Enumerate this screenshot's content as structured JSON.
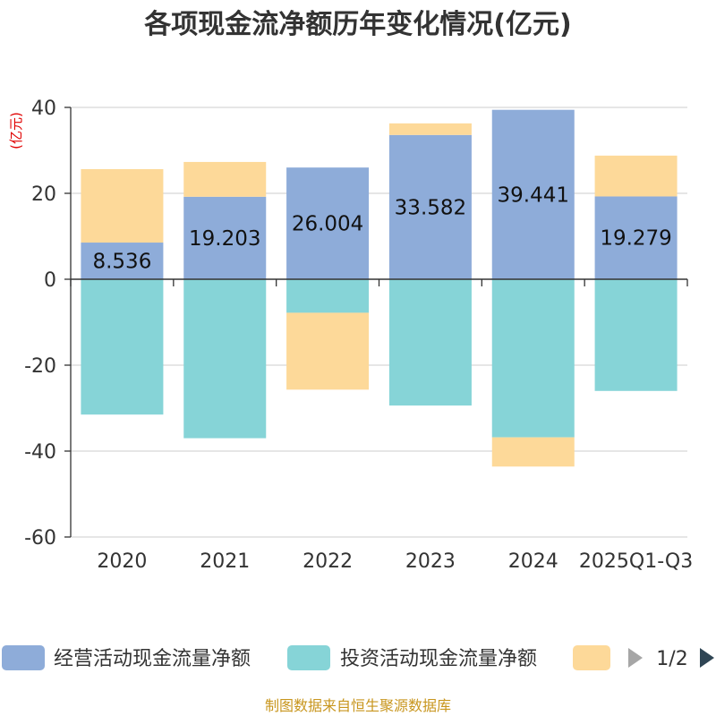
{
  "chart_data": {
    "type": "bar",
    "stacked": true,
    "title": "各项现金流净额历年变化情况(亿元)",
    "unit_label": "(亿元)",
    "categories": [
      "2020",
      "2021",
      "2022",
      "2023",
      "2024",
      "2025Q1-Q3"
    ],
    "series": [
      {
        "name": "经营活动现金流量净额",
        "color": "#8eacd9",
        "values": [
          8.536,
          19.203,
          26.004,
          33.582,
          39.441,
          19.279
        ],
        "labels": [
          "8.536",
          "19.203",
          "26.004",
          "33.582",
          "39.441",
          "19.279"
        ]
      },
      {
        "name": "投资活动现金流量净额",
        "color": "#86d4d7",
        "values": [
          -31.5,
          -37.0,
          -7.8,
          -29.4,
          -36.8,
          -26.0
        ]
      },
      {
        "name": "",
        "color": "#fdd999",
        "values": [
          17.1,
          8.1,
          -17.9,
          2.7,
          -6.8,
          9.5
        ]
      }
    ],
    "ylim": [
      -60,
      40
    ],
    "yticks": [
      "-60",
      "-40",
      "-20",
      "0",
      "20",
      "40"
    ],
    "grid": true,
    "legend": {
      "position": "bottom",
      "page": "1/2",
      "visible_labels": [
        "经营活动现金流量净额",
        "投资活动现金流量净额"
      ]
    }
  },
  "source": "制图数据来自恒生聚源数据库"
}
